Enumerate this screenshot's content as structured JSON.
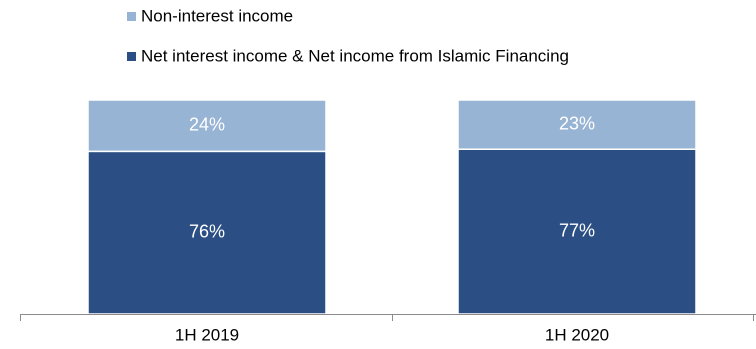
{
  "chart_data": {
    "type": "bar",
    "stacked": true,
    "percent": true,
    "categories": [
      "1H 2019",
      "1H 2020"
    ],
    "series": [
      {
        "name": "Net interest income & Net income from Islamic Financing",
        "values": [
          76,
          77
        ],
        "labels": [
          "76%",
          "77%"
        ],
        "color": "#2b4f85"
      },
      {
        "name": "Non-interest income",
        "values": [
          24,
          23
        ],
        "labels": [
          "24%",
          "23%"
        ],
        "color": "#98b4d4"
      }
    ],
    "ylim": [
      0,
      100
    ],
    "legend_position": "top-center",
    "grid": false
  }
}
